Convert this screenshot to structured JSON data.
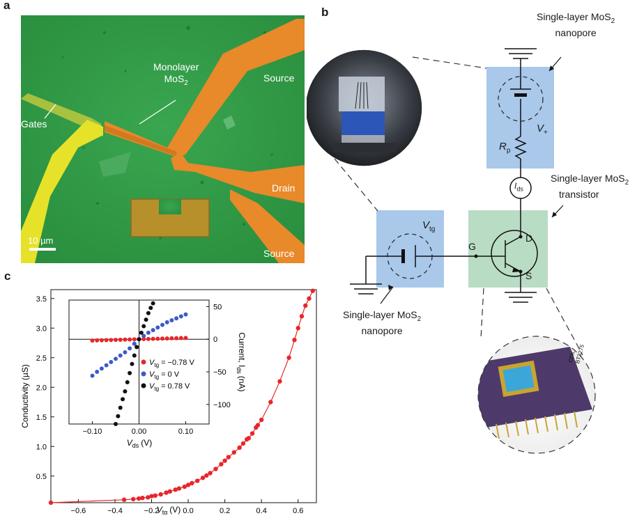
{
  "figure": {
    "panel_a_label": "a",
    "panel_b_label": "b",
    "panel_c_label": "c"
  },
  "panel_a": {
    "monolayer_label_line1": "Monolayer",
    "monolayer_label_line2": "MoS",
    "monolayer_sub": "2",
    "gates_label": "Gates",
    "source_top_label": "Source",
    "drain_label": "Drain",
    "source_bottom_label": "Source",
    "scale_bar_label": "10 µm"
  },
  "panel_b": {
    "nanopore_top_line1": "Single-layer MoS",
    "nanopore_top_sub": "2",
    "nanopore_top_line2": "nanopore",
    "transistor_line1": "Single-layer MoS",
    "transistor_sub": "2",
    "transistor_line2": "transistor",
    "nanopore_bottom_line1": "Single-layer MoS",
    "nanopore_bottom_sub": "2",
    "nanopore_bottom_line2": "nanopore",
    "vplus_main": "V",
    "vplus_sub": "+",
    "rp_main": "R",
    "rp_sub": "p",
    "ids_main": "I",
    "ids_sub": "ds",
    "vtg_main": "V",
    "vtg_sub": "tg",
    "node_d": "D",
    "node_g": "G",
    "node_s": "S",
    "chip_text_1": "CDK",
    "chip_text_2": "BT3275"
  },
  "colors": {
    "green_substrate": "#2f9a45",
    "electrode": "#e8892a",
    "gate_yellow": "#e6e22a",
    "box_blue": "#a9c8ea",
    "box_green": "#b9dcc4",
    "red_series": "#e8262a",
    "blue_series": "#3c5cc4",
    "black_series": "#111111"
  },
  "chart_data": [
    {
      "type": "scatter",
      "xlabel_main": "V",
      "xlabel_sub": "tg",
      "xlabel_unit": "(V)",
      "ylabel": "Conductivity (µS)",
      "xlim": [
        -0.75,
        0.7
      ],
      "ylim": [
        0.05,
        3.65
      ],
      "xticks": [
        "−0.6",
        "−0.4",
        "−0.2",
        "0.0",
        "0.2",
        "0.4",
        "0.6"
      ],
      "yticks": [
        "0.5",
        "1.0",
        "1.5",
        "2.0",
        "2.5",
        "3.0",
        "3.5"
      ],
      "series": [
        {
          "color": "#e8262a",
          "x": [
            -0.75,
            -0.35,
            -0.3,
            -0.27,
            -0.25,
            -0.22,
            -0.2,
            -0.18,
            -0.15,
            -0.12,
            -0.1,
            -0.07,
            -0.05,
            -0.02,
            0.0,
            0.02,
            0.05,
            0.08,
            0.1,
            0.12,
            0.15,
            0.18,
            0.2,
            0.22,
            0.25,
            0.28,
            0.3,
            0.32,
            0.33,
            0.35,
            0.37,
            0.38,
            0.4,
            0.45,
            0.5,
            0.55,
            0.58,
            0.6,
            0.62,
            0.64,
            0.66,
            0.68
          ],
          "y": [
            0.05,
            0.1,
            0.11,
            0.12,
            0.13,
            0.14,
            0.16,
            0.17,
            0.19,
            0.22,
            0.24,
            0.27,
            0.29,
            0.32,
            0.35,
            0.38,
            0.42,
            0.47,
            0.51,
            0.55,
            0.62,
            0.7,
            0.76,
            0.82,
            0.9,
            0.98,
            1.05,
            1.12,
            1.14,
            1.22,
            1.32,
            1.36,
            1.45,
            1.75,
            2.1,
            2.5,
            2.8,
            3.0,
            3.2,
            3.38,
            3.5,
            3.63
          ]
        }
      ]
    },
    {
      "type": "scatter",
      "xlabel_main": "V",
      "xlabel_sub": "ds",
      "xlabel_unit": "(V)",
      "ylabel_main": "Current, I",
      "ylabel_sub": "ds",
      "ylabel_unit": "(nA)",
      "xlim": [
        -0.15,
        0.15
      ],
      "ylim": [
        -130,
        60
      ],
      "xticks": [
        "−0.10",
        "0.00",
        "0.10"
      ],
      "yticks": [
        "50",
        "0",
        "−50",
        "−100"
      ],
      "legend": [
        {
          "prefix": "V",
          "sub": "tg",
          "value": " = −0.78 V"
        },
        {
          "prefix": "V",
          "sub": "tg",
          "value": " = 0 V"
        },
        {
          "prefix": "V",
          "sub": "tg",
          "value": " = 0.78 V"
        }
      ],
      "series": [
        {
          "color": "#e8262a",
          "x": [
            -0.1,
            -0.09,
            -0.08,
            -0.07,
            -0.06,
            -0.05,
            -0.04,
            -0.03,
            -0.02,
            -0.01,
            0.0,
            0.01,
            0.02,
            0.03,
            0.04,
            0.05,
            0.06,
            0.07,
            0.08,
            0.09,
            0.1
          ],
          "y": [
            -2,
            -1.8,
            -1.6,
            -1.4,
            -1.2,
            -1,
            -0.8,
            -0.6,
            -0.4,
            -0.2,
            0,
            0.2,
            0.4,
            0.6,
            0.8,
            1,
            1.2,
            1.4,
            1.6,
            1.8,
            2
          ]
        },
        {
          "color": "#3c5cc4",
          "x": [
            -0.1,
            -0.09,
            -0.08,
            -0.07,
            -0.06,
            -0.05,
            -0.04,
            -0.03,
            -0.02,
            -0.01,
            0.0,
            0.01,
            0.02,
            0.03,
            0.04,
            0.05,
            0.06,
            0.07,
            0.08,
            0.09,
            0.1
          ],
          "y": [
            -56,
            -50,
            -45,
            -40,
            -35,
            -30,
            -25,
            -20,
            -14,
            -7,
            0,
            5,
            10,
            14,
            18,
            22,
            26,
            29,
            32,
            35,
            38
          ]
        },
        {
          "color": "#111111",
          "x": [
            -0.05,
            -0.045,
            -0.04,
            -0.035,
            -0.03,
            -0.025,
            -0.02,
            -0.015,
            -0.01,
            -0.005,
            0.0,
            0.005,
            0.01,
            0.015,
            0.02,
            0.025,
            0.03
          ],
          "y": [
            -130,
            -118,
            -105,
            -92,
            -80,
            -66,
            -52,
            -38,
            -25,
            -12,
            0,
            10,
            20,
            30,
            40,
            48,
            55
          ]
        }
      ]
    }
  ]
}
